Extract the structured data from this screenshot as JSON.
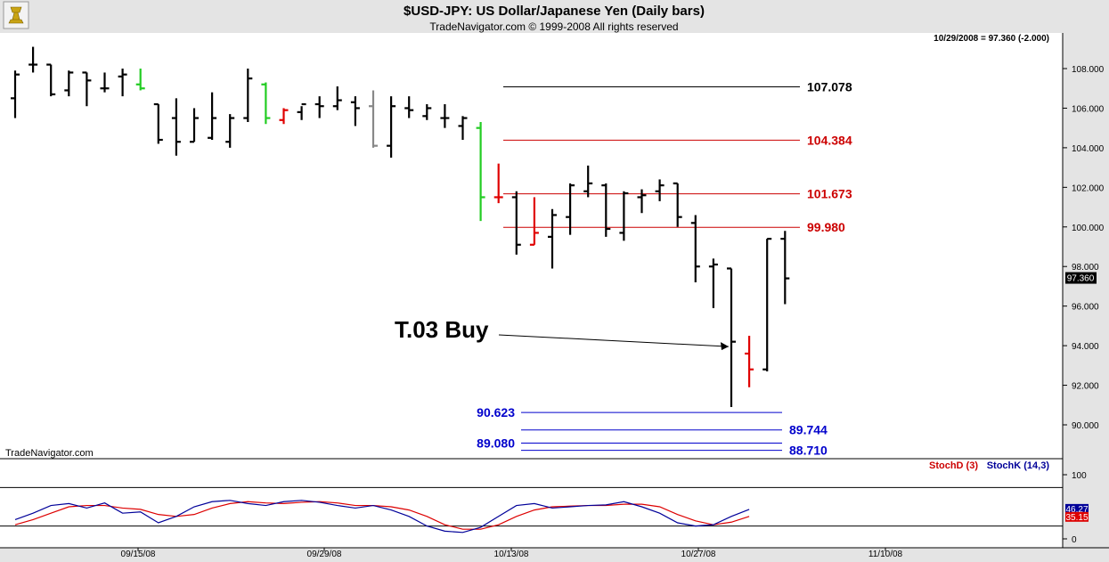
{
  "header": {
    "title": "$USD-JPY:  US Dollar/Japanese Yen  (Daily bars)",
    "subtitle": "TradeNavigator.com © 1999-2008 All rights reserved"
  },
  "watermark": "TradeNavigator.com",
  "chart_data": {
    "type": "bar",
    "subtype": "ohlc",
    "symbol": "$USD-JPY",
    "last_readout": "10/29/2008 = 97.360 (-2.000)",
    "last_price_label": "97.360",
    "ylim": [
      89,
      109
    ],
    "yticks": [
      "108.000",
      "106.000",
      "104.000",
      "102.000",
      "100.000",
      "98.000",
      "96.000",
      "94.000",
      "92.000",
      "90.000"
    ],
    "x_dates": [
      "09/15/08",
      "09/29/08",
      "10/13/08",
      "10/27/08",
      "11/10/08"
    ],
    "grid": false,
    "bars": [
      {
        "o": 106.5,
        "h": 107.9,
        "l": 105.5,
        "c": 107.7,
        "color": "black"
      },
      {
        "o": 108.2,
        "h": 109.1,
        "l": 107.8,
        "c": 108.2,
        "color": "black"
      },
      {
        "o": 108.2,
        "h": 108.2,
        "l": 106.6,
        "c": 106.7,
        "color": "black"
      },
      {
        "o": 106.9,
        "h": 107.9,
        "l": 106.6,
        "c": 107.8,
        "color": "black"
      },
      {
        "o": 107.8,
        "h": 107.8,
        "l": 106.1,
        "c": 107.4,
        "color": "black"
      },
      {
        "o": 107.0,
        "h": 107.8,
        "l": 106.8,
        "c": 107.0,
        "color": "black"
      },
      {
        "o": 107.6,
        "h": 108.0,
        "l": 106.6,
        "c": 107.7,
        "color": "black"
      },
      {
        "o": 107.2,
        "h": 108.0,
        "l": 106.9,
        "c": 107.0,
        "color": "green"
      },
      {
        "o": 106.2,
        "h": 106.2,
        "l": 104.2,
        "c": 104.4,
        "color": "black"
      },
      {
        "o": 105.5,
        "h": 106.5,
        "l": 103.6,
        "c": 104.3,
        "color": "black"
      },
      {
        "o": 104.3,
        "h": 106.0,
        "l": 104.3,
        "c": 105.5,
        "color": "black"
      },
      {
        "o": 104.5,
        "h": 106.8,
        "l": 104.4,
        "c": 105.5,
        "color": "black"
      },
      {
        "o": 104.3,
        "h": 105.7,
        "l": 104.0,
        "c": 105.5,
        "color": "black"
      },
      {
        "o": 105.5,
        "h": 108.0,
        "l": 105.3,
        "c": 107.5,
        "color": "black"
      },
      {
        "o": 107.2,
        "h": 107.3,
        "l": 105.2,
        "c": 105.5,
        "color": "green"
      },
      {
        "o": 105.4,
        "h": 106.0,
        "l": 105.2,
        "c": 105.9,
        "color": "red"
      },
      {
        "o": 105.8,
        "h": 106.1,
        "l": 105.4,
        "c": 106.2,
        "color": "black"
      },
      {
        "o": 106.2,
        "h": 106.6,
        "l": 105.5,
        "c": 106.1,
        "color": "black"
      },
      {
        "o": 106.1,
        "h": 107.1,
        "l": 105.9,
        "c": 106.4,
        "color": "black"
      },
      {
        "o": 106.3,
        "h": 106.6,
        "l": 105.1,
        "c": 106.0,
        "color": "black"
      },
      {
        "o": 106.1,
        "h": 106.9,
        "l": 104.0,
        "c": 104.1,
        "color": "gray"
      },
      {
        "o": 104.1,
        "h": 106.6,
        "l": 103.5,
        "c": 106.1,
        "color": "black"
      },
      {
        "o": 106.0,
        "h": 106.6,
        "l": 105.5,
        "c": 105.9,
        "color": "black"
      },
      {
        "o": 105.6,
        "h": 106.2,
        "l": 105.4,
        "c": 106.0,
        "color": "black"
      },
      {
        "o": 105.5,
        "h": 106.2,
        "l": 105.0,
        "c": 105.5,
        "color": "black"
      },
      {
        "o": 105.1,
        "h": 105.6,
        "l": 104.4,
        "c": 105.5,
        "color": "black"
      },
      {
        "o": 105.0,
        "h": 105.3,
        "l": 100.3,
        "c": 101.5,
        "color": "green"
      },
      {
        "o": 101.5,
        "h": 103.2,
        "l": 101.2,
        "c": 101.5,
        "color": "red"
      },
      {
        "o": 101.5,
        "h": 101.8,
        "l": 98.6,
        "c": 99.1,
        "color": "black"
      },
      {
        "o": 99.1,
        "h": 101.5,
        "l": 99.1,
        "c": 99.7,
        "color": "red"
      },
      {
        "o": 99.5,
        "h": 100.9,
        "l": 97.9,
        "c": 100.6,
        "color": "black"
      },
      {
        "o": 100.5,
        "h": 102.2,
        "l": 99.6,
        "c": 102.1,
        "color": "black"
      },
      {
        "o": 101.8,
        "h": 103.1,
        "l": 101.5,
        "c": 102.2,
        "color": "black"
      },
      {
        "o": 102.1,
        "h": 102.2,
        "l": 99.5,
        "c": 99.9,
        "color": "black"
      },
      {
        "o": 99.7,
        "h": 101.8,
        "l": 99.3,
        "c": 101.7,
        "color": "black"
      },
      {
        "o": 101.5,
        "h": 101.9,
        "l": 100.7,
        "c": 101.6,
        "color": "black"
      },
      {
        "o": 101.8,
        "h": 102.4,
        "l": 101.3,
        "c": 102.1,
        "color": "black"
      },
      {
        "o": 102.2,
        "h": 102.2,
        "l": 100.0,
        "c": 100.5,
        "color": "black"
      },
      {
        "o": 100.2,
        "h": 100.6,
        "l": 97.2,
        "c": 98.0,
        "color": "black"
      },
      {
        "o": 98.0,
        "h": 98.4,
        "l": 95.9,
        "c": 98.1,
        "color": "black"
      },
      {
        "o": 97.9,
        "h": 97.9,
        "l": 90.9,
        "c": 94.2,
        "color": "black"
      },
      {
        "o": 93.6,
        "h": 94.5,
        "l": 91.9,
        "c": 92.8,
        "color": "red"
      },
      {
        "o": 92.8,
        "h": 99.4,
        "l": 92.7,
        "c": 99.4,
        "color": "black"
      },
      {
        "o": 99.4,
        "h": 99.8,
        "l": 96.1,
        "c": 97.4,
        "color": "black"
      }
    ],
    "levels": [
      {
        "value": 107.078,
        "label": "107.078",
        "color": "#000000",
        "side": "right"
      },
      {
        "value": 104.384,
        "label": "104.384",
        "color": "#cc0000",
        "side": "right"
      },
      {
        "value": 101.673,
        "label": "101.673",
        "color": "#cc0000",
        "side": "right"
      },
      {
        "value": 99.98,
        "label": "99.980",
        "color": "#cc0000",
        "side": "right"
      },
      {
        "value": 90.623,
        "label": "90.623",
        "color": "#0000cc",
        "side": "left"
      },
      {
        "value": 89.744,
        "label": "89.744",
        "color": "#0000cc",
        "side": "right"
      },
      {
        "value": 89.08,
        "label": "89.080",
        "color": "#0000cc",
        "side": "left"
      },
      {
        "value": 88.71,
        "label": "88.710",
        "color": "#0000cc",
        "side": "right"
      }
    ],
    "annotation": {
      "text": "T.03 Buy",
      "bar_index": 40,
      "value": 94.0
    },
    "stochastic": {
      "legend_d": "StochD (3)",
      "legend_k": "StochK (14,3)",
      "ylim": [
        0,
        100
      ],
      "yticks": [
        "100",
        "0"
      ],
      "levels": [
        80,
        20
      ],
      "last_k_label": "46.27",
      "last_d_label": "35.15",
      "k": [
        30,
        40,
        52,
        55,
        48,
        56,
        40,
        42,
        25,
        35,
        50,
        58,
        60,
        55,
        52,
        58,
        60,
        57,
        52,
        48,
        52,
        45,
        35,
        20,
        12,
        10,
        18,
        35,
        52,
        55,
        48,
        50,
        52,
        53,
        58,
        50,
        40,
        25,
        20,
        22,
        35,
        46
      ],
      "d": [
        22,
        30,
        40,
        50,
        52,
        52,
        48,
        46,
        38,
        35,
        38,
        48,
        55,
        58,
        56,
        55,
        57,
        58,
        56,
        52,
        52,
        50,
        45,
        35,
        22,
        15,
        15,
        22,
        35,
        45,
        50,
        51,
        52,
        52,
        54,
        54,
        50,
        38,
        28,
        22,
        26,
        35
      ]
    }
  }
}
